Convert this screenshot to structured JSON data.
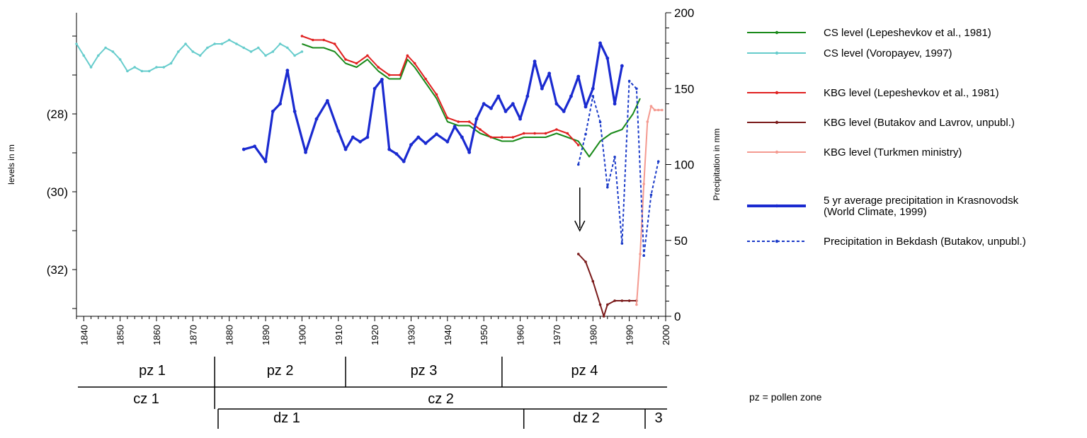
{
  "chart_data": {
    "type": "line",
    "axes": {
      "x": {
        "min": 1838,
        "max": 2000,
        "ticks": [
          1840,
          1850,
          1860,
          1870,
          1880,
          1890,
          1900,
          1910,
          1920,
          1930,
          1940,
          1950,
          1960,
          1970,
          1980,
          1990,
          2000
        ]
      },
      "y_left": {
        "label": "levels in m",
        "min": -33.2,
        "max": -25.4,
        "ticks": [
          -28,
          -30,
          -32
        ],
        "tick_labels": [
          "(28)",
          "(30)",
          "(32)"
        ]
      },
      "y_right": {
        "label": "Precipitation in mm",
        "min": 0,
        "max": 200,
        "ticks": [
          0,
          50,
          100,
          150,
          200
        ],
        "tick_labels": [
          "0",
          "50",
          "100",
          "150",
          "200"
        ]
      }
    },
    "series": [
      {
        "name": "CS level (Lepeshevkov et al., 1981)",
        "axis": "left",
        "color": "#1a8a1a",
        "style": "solid",
        "marker": false,
        "x": [
          1900,
          1903,
          1906,
          1909,
          1912,
          1915,
          1918,
          1921,
          1924,
          1927,
          1929,
          1931,
          1934,
          1937,
          1940,
          1943,
          1946,
          1949,
          1952,
          1955,
          1958,
          1961,
          1964,
          1967,
          1970,
          1973,
          1976,
          1979,
          1982,
          1985,
          1988,
          1991,
          1993
        ],
        "y": [
          -26.2,
          -26.3,
          -26.3,
          -26.4,
          -26.7,
          -26.8,
          -26.6,
          -26.9,
          -27.1,
          -27.1,
          -26.6,
          -26.8,
          -27.2,
          -27.6,
          -28.2,
          -28.3,
          -28.3,
          -28.5,
          -28.6,
          -28.7,
          -28.7,
          -28.6,
          -28.6,
          -28.6,
          -28.5,
          -28.6,
          -28.7,
          -29.1,
          -28.7,
          -28.5,
          -28.4,
          -28.0,
          -27.6
        ]
      },
      {
        "name": "CS level (Voropayev, 1997)",
        "axis": "left",
        "color": "#66cccc",
        "style": "solid",
        "marker": true,
        "x": [
          1838,
          1840,
          1842,
          1844,
          1846,
          1848,
          1850,
          1852,
          1854,
          1856,
          1858,
          1860,
          1862,
          1864,
          1866,
          1868,
          1870,
          1872,
          1874,
          1876,
          1878,
          1880,
          1882,
          1884,
          1886,
          1888,
          1890,
          1892,
          1894,
          1896,
          1898,
          1900
        ],
        "y": [
          -26.2,
          -26.5,
          -26.8,
          -26.5,
          -26.3,
          -26.4,
          -26.6,
          -26.9,
          -26.8,
          -26.9,
          -26.9,
          -26.8,
          -26.8,
          -26.7,
          -26.4,
          -26.2,
          -26.4,
          -26.5,
          -26.3,
          -26.2,
          -26.2,
          -26.1,
          -26.2,
          -26.3,
          -26.4,
          -26.3,
          -26.5,
          -26.4,
          -26.2,
          -26.3,
          -26.5,
          -26.4
        ]
      },
      {
        "name": "KBG level (Lepeshevkov et al., 1981)",
        "axis": "left",
        "color": "#e02020",
        "style": "solid",
        "marker": true,
        "x": [
          1900,
          1903,
          1906,
          1909,
          1912,
          1915,
          1918,
          1921,
          1924,
          1927,
          1929,
          1931,
          1934,
          1937,
          1940,
          1943,
          1946,
          1949,
          1952,
          1955,
          1958,
          1961,
          1964,
          1967,
          1970,
          1973,
          1976
        ],
        "y": [
          -26.0,
          -26.1,
          -26.1,
          -26.2,
          -26.6,
          -26.7,
          -26.5,
          -26.8,
          -27.0,
          -27.0,
          -26.5,
          -26.7,
          -27.1,
          -27.5,
          -28.1,
          -28.2,
          -28.2,
          -28.4,
          -28.6,
          -28.6,
          -28.6,
          -28.5,
          -28.5,
          -28.5,
          -28.4,
          -28.5,
          -28.8
        ]
      },
      {
        "name": "KBG level (Butakov and Lavrov, unpubl.)",
        "axis": "left",
        "color": "#7a1a1a",
        "style": "solid",
        "marker": true,
        "x": [
          1976,
          1978,
          1980,
          1982,
          1983,
          1984,
          1986,
          1988,
          1990,
          1992
        ],
        "y": [
          -31.6,
          -31.8,
          -32.3,
          -32.9,
          -33.2,
          -32.9,
          -32.8,
          -32.8,
          -32.8,
          -32.8
        ]
      },
      {
        "name": "KBG level (Turkmen ministry)",
        "axis": "left",
        "color": "#f49a90",
        "style": "solid",
        "marker": true,
        "x": [
          1992,
          1993,
          1994,
          1995,
          1996,
          1997,
          1998,
          1999
        ],
        "y": [
          -32.9,
          -31.6,
          -29.8,
          -28.2,
          -27.8,
          -27.9,
          -27.9,
          -27.9
        ]
      },
      {
        "name": "5 yr average precipitation in Krasnovodsk (World Climate, 1999)",
        "axis": "right",
        "color": "#1a2ad0",
        "style": "solid",
        "marker": true,
        "thick": true,
        "x": [
          1884,
          1887,
          1890,
          1892,
          1894,
          1896,
          1898,
          1901,
          1904,
          1907,
          1910,
          1912,
          1914,
          1916,
          1918,
          1920,
          1922,
          1924,
          1926,
          1928,
          1930,
          1932,
          1934,
          1937,
          1940,
          1942,
          1944,
          1946,
          1948,
          1950,
          1952,
          1954,
          1956,
          1958,
          1960,
          1962,
          1964,
          1966,
          1968,
          1970,
          1972,
          1974,
          1976,
          1978,
          1980,
          1982,
          1984,
          1986,
          1988
        ],
        "y": [
          110,
          112,
          102,
          135,
          140,
          162,
          135,
          108,
          130,
          142,
          122,
          110,
          118,
          115,
          118,
          150,
          156,
          110,
          107,
          102,
          113,
          118,
          114,
          120,
          115,
          125,
          118,
          108,
          130,
          140,
          137,
          145,
          135,
          140,
          130,
          145,
          168,
          150,
          160,
          140,
          135,
          145,
          158,
          138,
          150,
          180,
          170,
          140,
          165
        ]
      },
      {
        "name": "Precipitation in Bekdash (Butakov, unpubl.)",
        "axis": "right",
        "color": "#1a3ac8",
        "style": "dashed",
        "marker": true,
        "x": [
          1976,
          1978,
          1980,
          1982,
          1984,
          1986,
          1988,
          1990,
          1992,
          1994,
          1996,
          1998
        ],
        "y": [
          100,
          120,
          145,
          128,
          85,
          105,
          48,
          155,
          150,
          40,
          80,
          102
        ]
      }
    ],
    "annotations": [
      {
        "type": "arrow",
        "x": 1976,
        "text": "↓"
      }
    ],
    "zones": {
      "pollen": [
        {
          "label": "pz 1",
          "from": 1838,
          "to": 1876
        },
        {
          "label": "pz 2",
          "from": 1876,
          "to": 1912
        },
        {
          "label": "pz 3",
          "from": 1912,
          "to": 1955
        },
        {
          "label": "pz 4",
          "from": 1955,
          "to": 2000
        }
      ],
      "cz": [
        {
          "label": "cz 1",
          "from": 1838,
          "to": 1876
        },
        {
          "label": "cz 2",
          "from": 1876,
          "to": 2000
        }
      ],
      "dz": [
        {
          "label": "dz 1",
          "from": 1876,
          "to": 1961
        },
        {
          "label": "dz 2",
          "from": 1961,
          "to": 1994
        },
        {
          "label": "3",
          "from": 1994,
          "to": 2000
        }
      ]
    },
    "legend": {
      "placement": "right",
      "entries": [
        {
          "label": "CS level (Lepeshevkov et al., 1981)",
          "color": "#1a8a1a",
          "style": "solid"
        },
        {
          "label": "CS level (Voropayev, 1997)",
          "color": "#66cccc",
          "style": "solid"
        },
        {
          "label": "KBG level (Lepeshevkov et al., 1981)",
          "color": "#e02020",
          "style": "solid"
        },
        {
          "label": "KBG level (Butakov and Lavrov, unpubl.)",
          "color": "#7a1a1a",
          "style": "solid"
        },
        {
          "label": "KBG level (Turkmen ministry)",
          "color": "#f49a90",
          "style": "solid"
        },
        {
          "label": "5 yr average precipitation in Krasnovodsk\n(World Climate, 1999)",
          "color": "#1a2ad0",
          "style": "thick"
        },
        {
          "label": "Precipitation in Bekdash (Butakov, unpubl.)",
          "color": "#1a3ac8",
          "style": "dashed"
        }
      ]
    },
    "note": "pz = pollen zone"
  }
}
